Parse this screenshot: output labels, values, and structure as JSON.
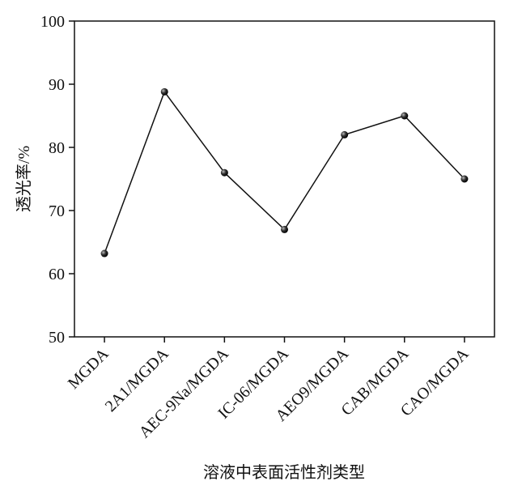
{
  "chart_data": {
    "type": "line",
    "xlabel": "溶液中表面活性剂类型",
    "ylabel": "透光率/%",
    "categories": [
      "MGDA",
      "2A1/MGDA",
      "AEC-9Na/MGDA",
      "IC-06/MGDA",
      "AEO9/MGDA",
      "CAB/MGDA",
      "CAO/MGDA"
    ],
    "values": [
      63.2,
      88.8,
      76,
      67,
      82,
      85,
      75
    ],
    "color": "#111111",
    "ylim": [
      50,
      100
    ],
    "yticks": [
      50,
      60,
      70,
      80,
      90,
      100
    ]
  }
}
